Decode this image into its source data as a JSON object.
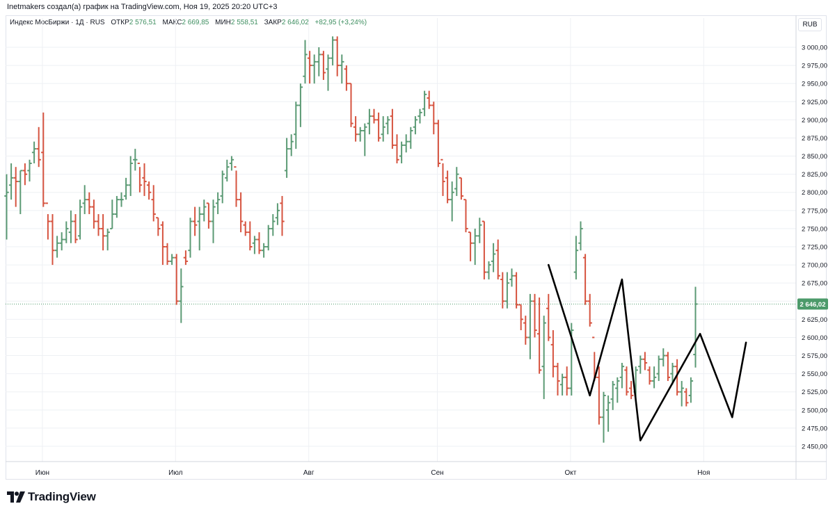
{
  "credit": "Inetmakers создал(а) график на TradingView.com, Ноя 19, 2025 20:20 UTC+3",
  "legend": {
    "symbol": "Индекс МосБиржи · 1Д · RUS",
    "open_label": "ОТКР",
    "open_value": "2 576,51",
    "high_label": "МАКС",
    "high_value": "2 669,85",
    "low_label": "МИН",
    "low_value": "2 558,51",
    "close_label": "ЗАКР",
    "close_value": "2 646,02",
    "change": "+82,95 (+3,24%)"
  },
  "currency": "RUB",
  "logo": {
    "text": "TradingView",
    "icon": "tradingview-logo-icon"
  },
  "colors": {
    "up": "#5b9a74",
    "down": "#d6533f",
    "price_tag": "#4c9a6a",
    "zigzag": "#000000",
    "grid": "#eef0f4"
  },
  "chart_data": {
    "type": "ohlc",
    "price_label": "2 646,02",
    "last_price": 2646.02,
    "ylim": [
      2420,
      3030
    ],
    "y_ticks": [
      {
        "value": 3000,
        "label": "3 000,00"
      },
      {
        "value": 2975,
        "label": "2 975,00"
      },
      {
        "value": 2950,
        "label": "2 950,00"
      },
      {
        "value": 2925,
        "label": "2 925,00"
      },
      {
        "value": 2900,
        "label": "2 900,00"
      },
      {
        "value": 2875,
        "label": "2 875,00"
      },
      {
        "value": 2850,
        "label": "2 850,00"
      },
      {
        "value": 2825,
        "label": "2 825,00"
      },
      {
        "value": 2800,
        "label": "2 800,00"
      },
      {
        "value": 2775,
        "label": "2 775,00"
      },
      {
        "value": 2750,
        "label": "2 750,00"
      },
      {
        "value": 2725,
        "label": "2 725,00"
      },
      {
        "value": 2700,
        "label": "2 700,00"
      },
      {
        "value": 2675,
        "label": "2 675,00"
      },
      {
        "value": 2650,
        "label": "2 650,00"
      },
      {
        "value": 2625,
        "label": "2 625,00"
      },
      {
        "value": 2600,
        "label": "2 600,00"
      },
      {
        "value": 2575,
        "label": "2 575,00"
      },
      {
        "value": 2550,
        "label": "2 550,00"
      },
      {
        "value": 2525,
        "label": "2 525,00"
      },
      {
        "value": 2500,
        "label": "2 500,00"
      },
      {
        "value": 2475,
        "label": "2 475,00"
      },
      {
        "value": 2450,
        "label": "2 450,00"
      }
    ],
    "x_ticks": [
      {
        "bar": 4,
        "label": "Июн"
      },
      {
        "bar": 33,
        "label": "Июл"
      },
      {
        "bar": 62,
        "label": "Авг"
      },
      {
        "bar": 90,
        "label": "Сен"
      },
      {
        "bar": 119,
        "label": "Окт"
      },
      {
        "bar": 148,
        "label": "Ноя"
      }
    ],
    "bars": [
      [
        2795,
        2825,
        2735,
        2800
      ],
      [
        2810,
        2840,
        2790,
        2820
      ],
      [
        2820,
        2835,
        2780,
        2815
      ],
      [
        2815,
        2830,
        2770,
        2830
      ],
      [
        2830,
        2840,
        2810,
        2825
      ],
      [
        2830,
        2845,
        2815,
        2840
      ],
      [
        2855,
        2870,
        2840,
        2860
      ],
      [
        2860,
        2890,
        2835,
        2845
      ],
      [
        2855,
        2910,
        2780,
        2785
      ],
      [
        2785,
        2770,
        2735,
        2760
      ],
      [
        2760,
        2770,
        2700,
        2720
      ],
      [
        2720,
        2740,
        2710,
        2730
      ],
      [
        2730,
        2745,
        2720,
        2735
      ],
      [
        2735,
        2760,
        2730,
        2750
      ],
      [
        2745,
        2775,
        2730,
        2760
      ],
      [
        2760,
        2770,
        2730,
        2735
      ],
      [
        2740,
        2790,
        2735,
        2780
      ],
      [
        2785,
        2810,
        2770,
        2790
      ],
      [
        2790,
        2800,
        2770,
        2780
      ],
      [
        2780,
        2790,
        2750,
        2760
      ],
      [
        2760,
        2770,
        2740,
        2750
      ],
      [
        2750,
        2770,
        2720,
        2740
      ],
      [
        2740,
        2750,
        2720,
        2745
      ],
      [
        2750,
        2790,
        2750,
        2770
      ],
      [
        2770,
        2795,
        2765,
        2790
      ],
      [
        2790,
        2800,
        2780,
        2790
      ],
      [
        2795,
        2820,
        2790,
        2810
      ],
      [
        2810,
        2850,
        2795,
        2840
      ],
      [
        2845,
        2860,
        2830,
        2845
      ],
      [
        2840,
        2835,
        2800,
        2810
      ],
      [
        2820,
        2840,
        2795,
        2815
      ],
      [
        2810,
        2815,
        2790,
        2800
      ],
      [
        2790,
        2810,
        2760,
        2770
      ],
      [
        2765,
        2765,
        2740,
        2750
      ],
      [
        2755,
        2760,
        2700,
        2725
      ],
      [
        2725,
        2730,
        2700,
        2705
      ],
      [
        2705,
        2715,
        2700,
        2710
      ],
      [
        2710,
        2715,
        2645,
        2650
      ],
      [
        2650,
        2695,
        2620,
        2670
      ],
      [
        2710,
        2720,
        2700,
        2705
      ],
      [
        2720,
        2765,
        2710,
        2760
      ],
      [
        2760,
        2780,
        2740,
        2755
      ],
      [
        2760,
        2780,
        2720,
        2770
      ],
      [
        2770,
        2790,
        2760,
        2780
      ],
      [
        2785,
        2785,
        2750,
        2760
      ],
      [
        2760,
        2790,
        2730,
        2780
      ],
      [
        2785,
        2800,
        2770,
        2790
      ],
      [
        2795,
        2830,
        2785,
        2825
      ],
      [
        2820,
        2845,
        2815,
        2835
      ],
      [
        2840,
        2850,
        2830,
        2845
      ],
      [
        2835,
        2830,
        2780,
        2790
      ],
      [
        2790,
        2800,
        2745,
        2760
      ],
      [
        2755,
        2760,
        2740,
        2745
      ],
      [
        2745,
        2760,
        2720,
        2725
      ],
      [
        2730,
        2740,
        2715,
        2735
      ],
      [
        2735,
        2745,
        2715,
        2720
      ],
      [
        2720,
        2730,
        2710,
        2725
      ],
      [
        2725,
        2755,
        2720,
        2750
      ],
      [
        2750,
        2770,
        2740,
        2760
      ],
      [
        2765,
        2785,
        2755,
        2775
      ],
      [
        2785,
        2795,
        2740,
        2760
      ],
      [
        2830,
        2875,
        2820,
        2860
      ],
      [
        2860,
        2880,
        2850,
        2870
      ],
      [
        2880,
        2925,
        2860,
        2920
      ],
      [
        2920,
        2950,
        2890,
        2945
      ],
      [
        2960,
        3010,
        2950,
        2990
      ],
      [
        2985,
        2995,
        2950,
        2975
      ],
      [
        2975,
        2990,
        2950,
        2980
      ],
      [
        2980,
        3000,
        2960,
        2990
      ],
      [
        2990,
        2995,
        2955,
        2965
      ],
      [
        2970,
        2990,
        2940,
        2985
      ],
      [
        2985,
        3015,
        2975,
        3010
      ],
      [
        3010,
        3015,
        2960,
        2975
      ],
      [
        2975,
        2990,
        2950,
        2980
      ],
      [
        2970,
        2975,
        2940,
        2950
      ],
      [
        2950,
        2950,
        2890,
        2895
      ],
      [
        2890,
        2905,
        2870,
        2880
      ],
      [
        2880,
        2890,
        2870,
        2885
      ],
      [
        2885,
        2895,
        2850,
        2890
      ],
      [
        2895,
        2915,
        2880,
        2905
      ],
      [
        2905,
        2915,
        2895,
        2900
      ],
      [
        2900,
        2910,
        2870,
        2875
      ],
      [
        2880,
        2905,
        2870,
        2890
      ],
      [
        2895,
        2905,
        2880,
        2900
      ],
      [
        2905,
        2915,
        2860,
        2865
      ],
      [
        2865,
        2880,
        2840,
        2845
      ],
      [
        2850,
        2870,
        2840,
        2865
      ],
      [
        2865,
        2880,
        2855,
        2870
      ],
      [
        2870,
        2890,
        2860,
        2885
      ],
      [
        2890,
        2905,
        2880,
        2900
      ],
      [
        2905,
        2915,
        2895,
        2910
      ],
      [
        2915,
        2940,
        2905,
        2935
      ],
      [
        2930,
        2940,
        2915,
        2920
      ],
      [
        2920,
        2925,
        2880,
        2895
      ],
      [
        2895,
        2900,
        2835,
        2840
      ],
      [
        2845,
        2840,
        2795,
        2815
      ],
      [
        2820,
        2830,
        2785,
        2790
      ],
      [
        2790,
        2815,
        2760,
        2800
      ],
      [
        2805,
        2835,
        2795,
        2825
      ],
      [
        2820,
        2820,
        2790,
        2795
      ],
      [
        2790,
        2790,
        2745,
        2750
      ],
      [
        2745,
        2745,
        2705,
        2730
      ],
      [
        2730,
        2750,
        2700,
        2740
      ],
      [
        2740,
        2765,
        2730,
        2755
      ],
      [
        2760,
        2760,
        2680,
        2690
      ],
      [
        2690,
        2705,
        2680,
        2700
      ],
      [
        2705,
        2730,
        2690,
        2715
      ],
      [
        2720,
        2735,
        2680,
        2685
      ],
      [
        2680,
        2690,
        2640,
        2650
      ],
      [
        2650,
        2690,
        2640,
        2675
      ],
      [
        2680,
        2695,
        2670,
        2685
      ],
      [
        2685,
        2690,
        2640,
        2645
      ],
      [
        2645,
        2645,
        2610,
        2625
      ],
      [
        2620,
        2630,
        2590,
        2600
      ],
      [
        2600,
        2660,
        2570,
        2650
      ],
      [
        2650,
        2660,
        2600,
        2610
      ],
      [
        2605,
        2655,
        2550,
        2555
      ],
      [
        2560,
        2630,
        2515,
        2620
      ],
      [
        2640,
        2660,
        2595,
        2600
      ],
      [
        2590,
        2610,
        2545,
        2560
      ],
      [
        2560,
        2565,
        2520,
        2540
      ],
      [
        2535,
        2550,
        2520,
        2545
      ],
      [
        2545,
        2560,
        2520,
        2530
      ],
      [
        2530,
        2620,
        2520,
        2610
      ],
      [
        2690,
        2740,
        2680,
        2720
      ],
      [
        2730,
        2760,
        2720,
        2750
      ],
      [
        2710,
        2715,
        2645,
        2650
      ],
      [
        2650,
        2660,
        2615,
        2620
      ],
      [
        2600,
        2580,
        2540,
        2545
      ],
      [
        2545,
        2560,
        2480,
        2490
      ],
      [
        2490,
        2525,
        2455,
        2520
      ],
      [
        2500,
        2520,
        2470,
        2510
      ],
      [
        2515,
        2540,
        2500,
        2535
      ],
      [
        2530,
        2545,
        2510,
        2540
      ],
      [
        2545,
        2565,
        2530,
        2560
      ],
      [
        2555,
        2560,
        2520,
        2525
      ],
      [
        2530,
        2540,
        2515,
        2520
      ],
      [
        2525,
        2560,
        2515,
        2555
      ],
      [
        2560,
        2575,
        2550,
        2570
      ],
      [
        2570,
        2580,
        2555,
        2565
      ],
      [
        2555,
        2560,
        2535,
        2540
      ],
      [
        2540,
        2560,
        2530,
        2545
      ],
      [
        2550,
        2575,
        2540,
        2570
      ],
      [
        2570,
        2585,
        2560,
        2575
      ],
      [
        2575,
        2580,
        2540,
        2545
      ],
      [
        2550,
        2565,
        2535,
        2560
      ],
      [
        2560,
        2570,
        2520,
        2525
      ],
      [
        2525,
        2540,
        2505,
        2530
      ],
      [
        2525,
        2530,
        2505,
        2510
      ],
      [
        2520,
        2545,
        2510,
        2540
      ],
      [
        2576.51,
        2669.85,
        2558.51,
        2646.02
      ]
    ],
    "zigzag": [
      {
        "bar": 118,
        "price": 2700
      },
      {
        "bar": 127,
        "price": 2520
      },
      {
        "bar": 134,
        "price": 2680
      },
      {
        "bar": 138,
        "price": 2458
      },
      {
        "bar": 151,
        "price": 2605
      },
      {
        "bar": 158,
        "price": 2490
      },
      {
        "bar": 161,
        "price": 2593
      }
    ]
  }
}
